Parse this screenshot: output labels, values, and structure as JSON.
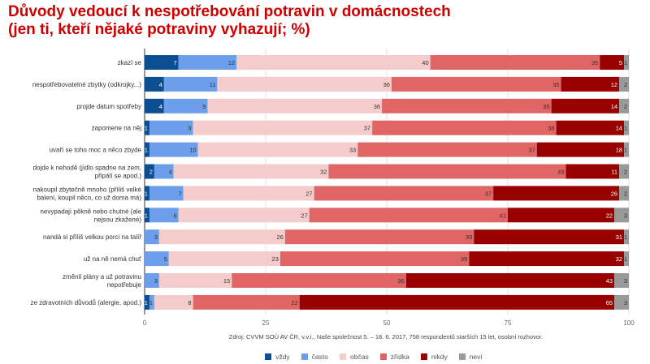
{
  "chart_data": {
    "type": "bar",
    "orientation": "horizontal",
    "stacked": true,
    "title": [
      "Důvody vedoucí k nespotřebování potravin v domácnostech",
      "(jen ti, kteří nějaké potraviny vyhazují; %)"
    ],
    "categories": [
      "zkazí se",
      "nespotřebovatelné zbytky (odkrojky...)",
      "projde datum spotřeby",
      "zapomene na něj",
      "uvaří se toho moc a něco zbyde",
      "dojde k nehodě (jídlo spadne na zem, připálí se apod.)",
      "nakoupil zbytečně mnoho (příliš velké balení, koupil něco, co už doma má)",
      "nevypadají pěkně nebo chutné (ale nejsou zkažené)",
      "nandá si příliš velkou porci na talíř",
      "už na ně nemá chuť",
      "změnil plány a už potravinu nepotřebuje",
      "ze zdravotních důvodů (alergie, apod.)"
    ],
    "series": [
      {
        "name": "vždy",
        "color": "#0b4f92",
        "values": [
          7,
          4,
          4,
          1,
          1,
          2,
          1,
          1,
          0,
          0,
          0,
          1
        ]
      },
      {
        "name": "často",
        "color": "#6d9eeb",
        "values": [
          12,
          11,
          9,
          9,
          10,
          4,
          7,
          6,
          3,
          5,
          3,
          1
        ]
      },
      {
        "name": "občas",
        "color": "#f4cccc",
        "values": [
          40,
          36,
          36,
          37,
          33,
          32,
          27,
          27,
          26,
          23,
          15,
          8
        ]
      },
      {
        "name": "zřídka",
        "color": "#e06666",
        "values": [
          35,
          35,
          35,
          38,
          37,
          49,
          37,
          41,
          39,
          39,
          36,
          22
        ]
      },
      {
        "name": "nikdy",
        "color": "#990000",
        "values": [
          5,
          12,
          14,
          14,
          18,
          11,
          26,
          22,
          31,
          32,
          43,
          65
        ]
      },
      {
        "name": "neví",
        "color": "#999999",
        "values": [
          1,
          2,
          2,
          1,
          1,
          2,
          2,
          3,
          1,
          1,
          3,
          3
        ]
      }
    ],
    "xlim": [
      0,
      100
    ],
    "xticks": [
      "0",
      "25",
      "50",
      "75",
      "100"
    ],
    "grid": true,
    "legend": "bottom",
    "source": "Zdroj: CVVM SOÚ AV ČR, v.v.i., Naše společnost 5. – 18. 6. 2017, 758 respondentů starších 15 let, osobní rozhovor."
  }
}
